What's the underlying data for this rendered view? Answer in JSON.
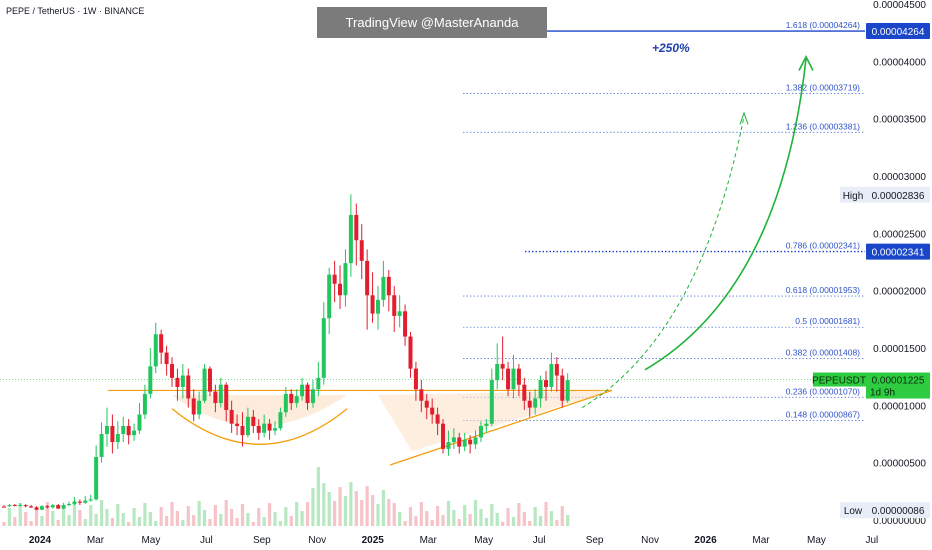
{
  "header": {
    "title": "PEPE / TetherUS · 1W · BINANCE",
    "watermark": "TradingView @MasterAnanda",
    "projection_label": "+250%"
  },
  "colors": {
    "up": "#22c55e",
    "down": "#e11d2e",
    "fib_line": "#5b7fe0",
    "fib_text": "#2f53c9",
    "accent_blue": "#1a47c9",
    "orange": "#f59e0b",
    "price_tag": "#2ecc40",
    "arrow": "#1fb33a"
  },
  "chart_data": {
    "type": "candlestick",
    "symbol": "PEPEUSDT",
    "timeframe": "1W",
    "exchange": "BINANCE",
    "xlabels": [
      "2024",
      "Mar",
      "May",
      "Jul",
      "Sep",
      "Nov",
      "2025",
      "Mar",
      "May",
      "Jul",
      "Sep",
      "Nov",
      "2026",
      "Mar",
      "May",
      "Jul"
    ],
    "ylabels": [
      "0.00004500",
      "0.00004000",
      "0.00003500",
      "0.00003000",
      "0.00002500",
      "0.00002000",
      "0.00001500",
      "0.00001000",
      "0.00000500",
      "0.00000000"
    ],
    "ylim": [
      0,
      4.5e-05
    ],
    "fib_levels": [
      {
        "label": "1.618 (0.00004264)",
        "value": 4.264e-05
      },
      {
        "label": "1.382 (0.00003719)",
        "value": 3.719e-05
      },
      {
        "label": "1.236 (0.00003381)",
        "value": 3.381e-05
      },
      {
        "label": "0.786 (0.00002341)",
        "value": 2.341e-05
      },
      {
        "label": "0.618 (0.00001953)",
        "value": 1.953e-05
      },
      {
        "label": "0.5 (0.00001681)",
        "value": 1.681e-05
      },
      {
        "label": "0.382 (0.00001408)",
        "value": 1.408e-05
      },
      {
        "label": "0.236 (0.00001070)",
        "value": 1.07e-05
      },
      {
        "label": "0.148 (0.00000867)",
        "value": 8.67e-06
      }
    ],
    "price_tags": [
      {
        "text": "0.00004264",
        "value": 4.264e-05
      },
      {
        "text": "0.00002341",
        "value": 2.341e-05
      }
    ],
    "high": {
      "label": "High",
      "text": "0.00002836",
      "value": 2.836e-05
    },
    "low": {
      "label": "Low",
      "text": "0.00000086",
      "value": 8.6e-07
    },
    "current": {
      "symbol": "PEPEUSDT",
      "text": "0.00001225",
      "countdown": "1d 9h",
      "value": 1.225e-05
    },
    "candles": [
      [
        1.18e-06,
        1.08e-06,
        1.3e-06,
        1.2e-06
      ],
      [
        1.2e-06,
        1.3e-06,
        1.4e-06,
        1.15e-06
      ],
      [
        1.3e-06,
        1.25e-06,
        1.4e-06,
        1.2e-06
      ],
      [
        1.25e-06,
        1.3e-06,
        1.45e-06,
        1.2e-06
      ],
      [
        1.3e-06,
        1.2e-06,
        1.38e-06,
        1.1e-06
      ],
      [
        1.2e-06,
        1.1e-06,
        1.3e-06,
        1.05e-06
      ],
      [
        1.1e-06,
        9e-07,
        1.2e-06,
        8.6e-07
      ],
      [
        9e-07,
        1.2e-06,
        1.3e-06,
        8.6e-07
      ],
      [
        1.2e-06,
        1.1e-06,
        1.3e-06,
        1e-06
      ],
      [
        1.1e-06,
        1.3e-06,
        1.4e-06,
        1e-06
      ],
      [
        1.3e-06,
        1e-06,
        1.4e-06,
        9.5e-07
      ],
      [
        1e-06,
        1.3e-06,
        1.5e-06,
        9.5e-07
      ],
      [
        1.3e-06,
        1.4e-06,
        1.6e-06,
        1.2e-06
      ],
      [
        1.4e-06,
        1.6e-06,
        2e-06,
        1.3e-06
      ],
      [
        1.6e-06,
        1.5e-06,
        1.8e-06,
        1.3e-06
      ],
      [
        1.5e-06,
        1.7e-06,
        2.1e-06,
        1.4e-06
      ],
      [
        1.7e-06,
        1.8e-06,
        2.2e-06,
        1.6e-06
      ],
      [
        1.8e-06,
        5.5e-06,
        6.5e-06,
        1.7e-06
      ],
      [
        5.5e-06,
        7.5e-06,
        8.5e-06,
        5e-06
      ],
      [
        7.5e-06,
        8.2e-06,
        9.8e-06,
        6.4e-06
      ],
      [
        8.2e-06,
        6.8e-06,
        9.2e-06,
        5.8e-06
      ],
      [
        6.8e-06,
        7.5e-06,
        8.6e-06,
        6.2e-06
      ],
      [
        7.5e-06,
        8.2e-06,
        9e-06,
        6.8e-06
      ],
      [
        8.2e-06,
        7.4e-06,
        8.8e-06,
        6.6e-06
      ],
      [
        7.4e-06,
        7.8e-06,
        8.4e-06,
        6.9e-06
      ],
      [
        7.8e-06,
        9.2e-06,
        1.02e-05,
        7.5e-06
      ],
      [
        9.2e-06,
        1.1e-05,
        1.18e-05,
        8.8e-06
      ],
      [
        1.1e-05,
        1.34e-05,
        1.5e-05,
        1.06e-05
      ],
      [
        1.34e-05,
        1.62e-05,
        1.72e-05,
        1.28e-05
      ],
      [
        1.62e-05,
        1.46e-05,
        1.66e-05,
        1.36e-05
      ],
      [
        1.46e-05,
        1.36e-05,
        1.52e-05,
        1.26e-05
      ],
      [
        1.36e-05,
        1.24e-05,
        1.42e-05,
        1.16e-05
      ],
      [
        1.24e-05,
        1.16e-05,
        1.32e-05,
        1.04e-05
      ],
      [
        1.16e-05,
        1.26e-05,
        1.36e-05,
        1.06e-05
      ],
      [
        1.26e-05,
        1.06e-05,
        1.32e-05,
        9.8e-06
      ],
      [
        1.06e-05,
        9.2e-06,
        1.14e-05,
        8.6e-06
      ],
      [
        9.2e-06,
        1.04e-05,
        1.12e-05,
        8.8e-06
      ],
      [
        1.04e-05,
        1.32e-05,
        1.36e-05,
        1.02e-05
      ],
      [
        1.32e-05,
        1.12e-05,
        1.34e-05,
        1.08e-05
      ],
      [
        1.12e-05,
        1.02e-05,
        1.18e-05,
        9.4e-06
      ],
      [
        1.02e-05,
        1.18e-05,
        1.24e-05,
        9.8e-06
      ],
      [
        1.18e-05,
        9.6e-06,
        1.2e-05,
        8.6e-06
      ],
      [
        9.6e-06,
        8.4e-06,
        1.04e-05,
        7.6e-06
      ],
      [
        8.4e-06,
        8.2e-06,
        9.2e-06,
        7.4e-06
      ],
      [
        8.2e-06,
        7.4e-06,
        9.4e-06,
        6.4e-06
      ],
      [
        7.4e-06,
        9e-06,
        9.8e-06,
        7.2e-06
      ],
      [
        9e-06,
        8.2e-06,
        9.6e-06,
        7.6e-06
      ],
      [
        8.2e-06,
        7.6e-06,
        8.8e-06,
        7e-06
      ],
      [
        7.6e-06,
        8.4e-06,
        9.2e-06,
        7.2e-06
      ],
      [
        8.4e-06,
        7.8e-06,
        8.8e-06,
        7e-06
      ],
      [
        7.8e-06,
        8e-06,
        8.6e-06,
        7.4e-06
      ],
      [
        8e-06,
        9.4e-06,
        9.8e-06,
        7.8e-06
      ],
      [
        9.4e-06,
        1.1e-05,
        1.16e-05,
        9e-06
      ],
      [
        1.1e-05,
        1.02e-05,
        1.14e-05,
        9.6e-06
      ],
      [
        1.02e-05,
        1.08e-05,
        1.14e-05,
        9.8e-06
      ],
      [
        1.08e-05,
        1.18e-05,
        1.24e-05,
        1.04e-05
      ],
      [
        1.18e-05,
        1.02e-05,
        1.2e-05,
        9.6e-06
      ],
      [
        1.02e-05,
        1.14e-05,
        1.22e-05,
        9.8e-06
      ],
      [
        1.14e-05,
        1.24e-05,
        1.38e-05,
        1.08e-05
      ],
      [
        1.24e-05,
        1.76e-05,
        1.9e-05,
        1.18e-05
      ],
      [
        1.76e-05,
        2.14e-05,
        2.2e-05,
        1.62e-05
      ],
      [
        2.14e-05,
        2.06e-05,
        2.26e-05,
        1.9e-05
      ],
      [
        2.06e-05,
        1.96e-05,
        2.22e-05,
        1.84e-05
      ],
      [
        1.96e-05,
        2.24e-05,
        2.36e-05,
        1.86e-05
      ],
      [
        2.24e-05,
        2.66e-05,
        2.84e-05,
        2.12e-05
      ],
      [
        2.66e-05,
        2.44e-05,
        2.76e-05,
        2.22e-05
      ],
      [
        2.44e-05,
        2.26e-05,
        2.58e-05,
        2.1e-05
      ],
      [
        2.26e-05,
        1.96e-05,
        2.36e-05,
        1.66e-05
      ],
      [
        1.96e-05,
        1.8e-05,
        2.16e-05,
        1.72e-05
      ],
      [
        1.8e-05,
        1.92e-05,
        2.04e-05,
        1.66e-05
      ],
      [
        1.92e-05,
        2.12e-05,
        2.26e-05,
        1.86e-05
      ],
      [
        2.12e-05,
        1.96e-05,
        2.18e-05,
        1.82e-05
      ],
      [
        1.96e-05,
        1.78e-05,
        2.04e-05,
        1.64e-05
      ],
      [
        1.78e-05,
        1.82e-05,
        1.96e-05,
        1.68e-05
      ],
      [
        1.82e-05,
        1.6e-05,
        1.88e-05,
        1.52e-05
      ],
      [
        1.6e-05,
        1.32e-05,
        1.64e-05,
        1.24e-05
      ],
      [
        1.32e-05,
        1.14e-05,
        1.38e-05,
        1.04e-05
      ],
      [
        1.14e-05,
        1.04e-05,
        1.22e-05,
        9.4e-06
      ],
      [
        1.04e-05,
        9.8e-06,
        1.1e-05,
        8.8e-06
      ],
      [
        9.8e-06,
        9.2e-06,
        1.06e-05,
        8.4e-06
      ],
      [
        9.2e-06,
        8.4e-06,
        9.8e-06,
        7.4e-06
      ],
      [
        8.4e-06,
        6.2e-06,
        8.8e-06,
        5.8e-06
      ],
      [
        6.2e-06,
        6.8e-06,
        7.8e-06,
        5.6e-06
      ],
      [
        6.8e-06,
        7.2e-06,
        8e-06,
        6.2e-06
      ],
      [
        7.2e-06,
        6.4e-06,
        7.6e-06,
        5.8e-06
      ],
      [
        6.4e-06,
        7e-06,
        7.6e-06,
        6e-06
      ],
      [
        7e-06,
        6.6e-06,
        7.4e-06,
        5.8e-06
      ],
      [
        6.6e-06,
        7.2e-06,
        7.8e-06,
        6.2e-06
      ],
      [
        7.2e-06,
        8.2e-06,
        8.6e-06,
        6.8e-06
      ],
      [
        8.2e-06,
        8.4e-06,
        8.8e-06,
        7.6e-06
      ],
      [
        8.4e-06,
        1.22e-05,
        1.32e-05,
        8.2e-06
      ],
      [
        1.22e-05,
        1.36e-05,
        1.54e-05,
        1.14e-05
      ],
      [
        1.36e-05,
        1.32e-05,
        1.6e-05,
        1.22e-05
      ],
      [
        1.32e-05,
        1.14e-05,
        1.38e-05,
        1.08e-05
      ],
      [
        1.14e-05,
        1.32e-05,
        1.44e-05,
        1.06e-05
      ],
      [
        1.32e-05,
        1.18e-05,
        1.36e-05,
        1.08e-05
      ],
      [
        1.18e-05,
        1.04e-05,
        1.24e-05,
        9.6e-06
      ],
      [
        1.04e-05,
        9.8e-06,
        1.12e-05,
        9e-06
      ],
      [
        9.8e-06,
        1.06e-05,
        1.14e-05,
        9.2e-06
      ],
      [
        1.06e-05,
        1.22e-05,
        1.26e-05,
        9.8e-06
      ],
      [
        1.22e-05,
        1.16e-05,
        1.3e-05,
        1.04e-05
      ],
      [
        1.16e-05,
        1.36e-05,
        1.46e-05,
        1.12e-05
      ],
      [
        1.36e-05,
        1.26e-05,
        1.42e-05,
        1.12e-05
      ],
      [
        1.26e-05,
        1.04e-05,
        1.32e-05,
        9.8e-06
      ],
      [
        1.04e-05,
        1.22e-05,
        1.28e-05,
        1.02e-05
      ]
    ]
  }
}
